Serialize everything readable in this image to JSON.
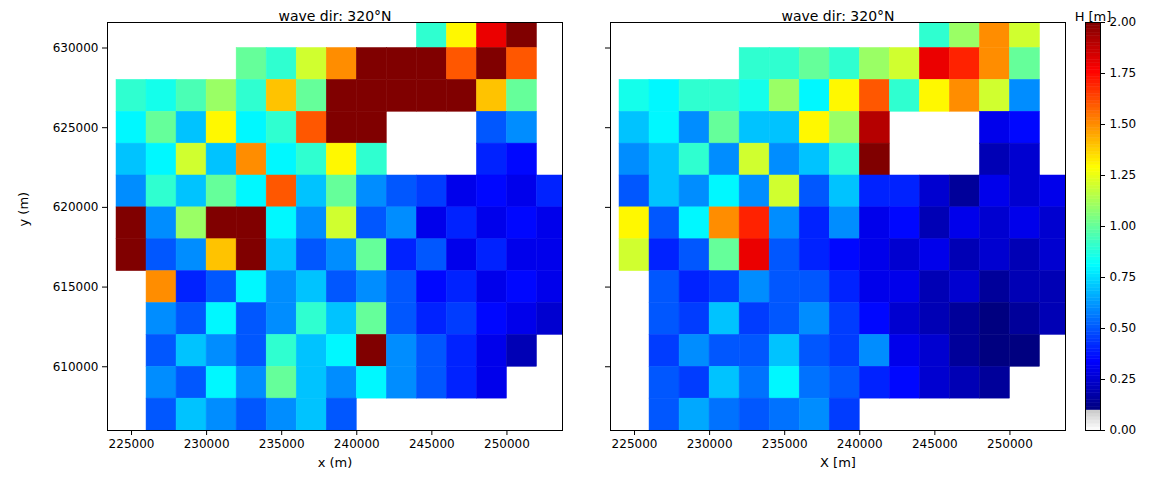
{
  "chart_data": [
    {
      "type": "heatmap",
      "title": "wave dir: 320°N",
      "x_label": "x (m)",
      "y_label": "y (m)",
      "xlim": [
        223400,
        253700
      ],
      "ylim": [
        606000,
        631600
      ],
      "xticks": [
        225000,
        230000,
        235000,
        240000,
        245000,
        250000
      ],
      "yticks": [
        610000,
        615000,
        620000,
        625000,
        630000
      ],
      "tick_labels": true,
      "x_edges": [
        224000,
        226000,
        228000,
        230000,
        232000,
        234000,
        236000,
        238000,
        240000,
        242000,
        244000,
        246000,
        248000,
        250000,
        252000,
        254000
      ],
      "y_edges": [
        632000,
        630000,
        628000,
        626000,
        624000,
        622000,
        620000,
        618000,
        616000,
        614000,
        612000,
        610000,
        608000,
        606000
      ],
      "values": [
        [
          null,
          null,
          null,
          null,
          null,
          null,
          null,
          null,
          null,
          null,
          0.9,
          1.3,
          1.8,
          2.0,
          null
        ],
        [
          null,
          null,
          null,
          null,
          1.0,
          0.9,
          1.2,
          1.5,
          2.0,
          2.0,
          2.0,
          1.6,
          2.0,
          1.6,
          null
        ],
        [
          0.9,
          0.85,
          0.95,
          1.1,
          0.9,
          1.4,
          1.0,
          2.0,
          2.0,
          2.0,
          2.0,
          2.0,
          1.4,
          1.0,
          null
        ],
        [
          0.8,
          1.0,
          0.7,
          1.3,
          0.8,
          0.9,
          1.6,
          2.0,
          2.0,
          null,
          null,
          null,
          0.5,
          0.6,
          null
        ],
        [
          0.7,
          0.8,
          1.2,
          0.7,
          1.5,
          0.8,
          0.9,
          1.3,
          0.9,
          null,
          null,
          null,
          0.4,
          0.35,
          null
        ],
        [
          0.6,
          0.9,
          0.7,
          1.0,
          0.8,
          1.6,
          0.7,
          1.0,
          0.6,
          0.5,
          0.45,
          0.3,
          0.35,
          0.3,
          0.4
        ],
        [
          2.0,
          0.6,
          1.1,
          2.0,
          2.0,
          0.8,
          0.6,
          1.2,
          0.5,
          0.6,
          0.3,
          0.4,
          0.3,
          0.35,
          0.3
        ],
        [
          2.0,
          0.5,
          0.6,
          1.4,
          2.0,
          0.7,
          0.5,
          0.6,
          1.0,
          0.4,
          0.5,
          0.3,
          0.4,
          0.3,
          0.3
        ],
        [
          null,
          1.5,
          0.4,
          0.5,
          0.8,
          0.6,
          0.7,
          0.5,
          0.6,
          0.5,
          0.35,
          0.4,
          0.3,
          0.35,
          0.3
        ],
        [
          null,
          0.6,
          0.5,
          0.8,
          0.5,
          0.6,
          0.9,
          0.7,
          1.0,
          0.5,
          0.4,
          0.45,
          0.35,
          0.3,
          0.25
        ],
        [
          null,
          0.5,
          0.7,
          0.6,
          0.5,
          0.9,
          0.7,
          0.8,
          2.0,
          0.6,
          0.5,
          0.4,
          0.3,
          0.2,
          null
        ],
        [
          null,
          0.6,
          0.5,
          0.8,
          0.6,
          1.0,
          0.7,
          0.6,
          0.8,
          0.6,
          0.5,
          0.4,
          0.3,
          null,
          null
        ],
        [
          null,
          0.5,
          0.7,
          0.6,
          0.5,
          0.6,
          0.7,
          0.5,
          null,
          null,
          null,
          null,
          null,
          null,
          null
        ]
      ]
    },
    {
      "type": "heatmap",
      "title": "wave dir: 320°N",
      "x_label": "X [m]",
      "xlim": [
        223400,
        253700
      ],
      "ylim": [
        606000,
        631600
      ],
      "xticks": [
        225000,
        230000,
        235000,
        240000,
        245000,
        250000
      ],
      "yticks": [
        610000,
        615000,
        620000,
        625000,
        630000
      ],
      "tick_labels": "x",
      "x_edges": [
        224000,
        226000,
        228000,
        230000,
        232000,
        234000,
        236000,
        238000,
        240000,
        242000,
        244000,
        246000,
        248000,
        250000,
        252000,
        254000
      ],
      "y_edges": [
        632000,
        630000,
        628000,
        626000,
        624000,
        622000,
        620000,
        618000,
        616000,
        614000,
        612000,
        610000,
        608000,
        606000
      ],
      "values": [
        [
          null,
          null,
          null,
          null,
          null,
          null,
          null,
          null,
          null,
          null,
          0.9,
          1.1,
          1.5,
          1.2,
          null
        ],
        [
          null,
          null,
          null,
          null,
          0.9,
          0.9,
          1.0,
          0.9,
          1.1,
          1.2,
          1.8,
          1.7,
          1.5,
          1.0,
          null
        ],
        [
          0.85,
          0.8,
          0.9,
          0.9,
          0.85,
          1.1,
          0.8,
          1.3,
          1.6,
          0.9,
          1.3,
          1.5,
          1.2,
          0.6,
          null
        ],
        [
          0.7,
          0.8,
          0.6,
          1.0,
          0.7,
          0.7,
          1.3,
          1.1,
          1.9,
          null,
          null,
          null,
          0.3,
          0.35,
          null
        ],
        [
          0.6,
          0.7,
          0.9,
          0.6,
          1.2,
          0.6,
          0.7,
          0.9,
          2.0,
          null,
          null,
          null,
          0.2,
          0.25,
          null
        ],
        [
          0.5,
          0.7,
          0.6,
          0.8,
          0.6,
          1.2,
          0.5,
          0.7,
          0.4,
          0.4,
          0.25,
          0.15,
          0.3,
          0.25,
          0.3
        ],
        [
          1.3,
          0.5,
          0.8,
          1.5,
          1.7,
          0.6,
          0.4,
          0.6,
          0.3,
          0.35,
          0.2,
          0.3,
          0.25,
          0.3,
          0.25
        ],
        [
          1.2,
          0.4,
          0.5,
          1.0,
          1.8,
          0.5,
          0.4,
          0.35,
          0.3,
          0.25,
          0.3,
          0.2,
          0.25,
          0.2,
          0.25
        ],
        [
          null,
          0.5,
          0.4,
          0.45,
          0.6,
          0.5,
          0.5,
          0.4,
          0.3,
          0.3,
          0.2,
          0.25,
          0.15,
          0.2,
          0.2
        ],
        [
          null,
          0.5,
          0.45,
          0.7,
          0.45,
          0.5,
          0.6,
          0.45,
          0.35,
          0.25,
          0.2,
          0.15,
          0.1,
          0.15,
          0.2
        ],
        [
          null,
          0.45,
          0.6,
          0.5,
          0.5,
          0.7,
          0.5,
          0.45,
          0.6,
          0.3,
          0.25,
          0.15,
          0.1,
          0.1,
          null
        ],
        [
          null,
          0.5,
          0.45,
          0.7,
          0.55,
          0.8,
          0.55,
          0.5,
          0.4,
          0.35,
          0.25,
          0.2,
          0.15,
          null,
          null
        ],
        [
          null,
          0.5,
          0.65,
          0.55,
          0.5,
          0.55,
          0.6,
          0.45,
          null,
          null,
          null,
          null,
          null,
          null,
          null
        ]
      ],
      "colorbar": {
        "label": "H [m]",
        "range": [
          0,
          2
        ],
        "ticks": [
          {
            "value": 0,
            "label": "0.00"
          },
          {
            "value": 0.25,
            "label": "0.25"
          },
          {
            "value": 0.5,
            "label": "0.50"
          },
          {
            "value": 0.75,
            "label": "0.75"
          },
          {
            "value": 1,
            "label": "1.00"
          },
          {
            "value": 1.25,
            "label": "1.25"
          },
          {
            "value": 1.5,
            "label": "1.50"
          },
          {
            "value": 1.75,
            "label": "1.75"
          },
          {
            "value": 2,
            "label": "2.00"
          }
        ]
      }
    }
  ]
}
